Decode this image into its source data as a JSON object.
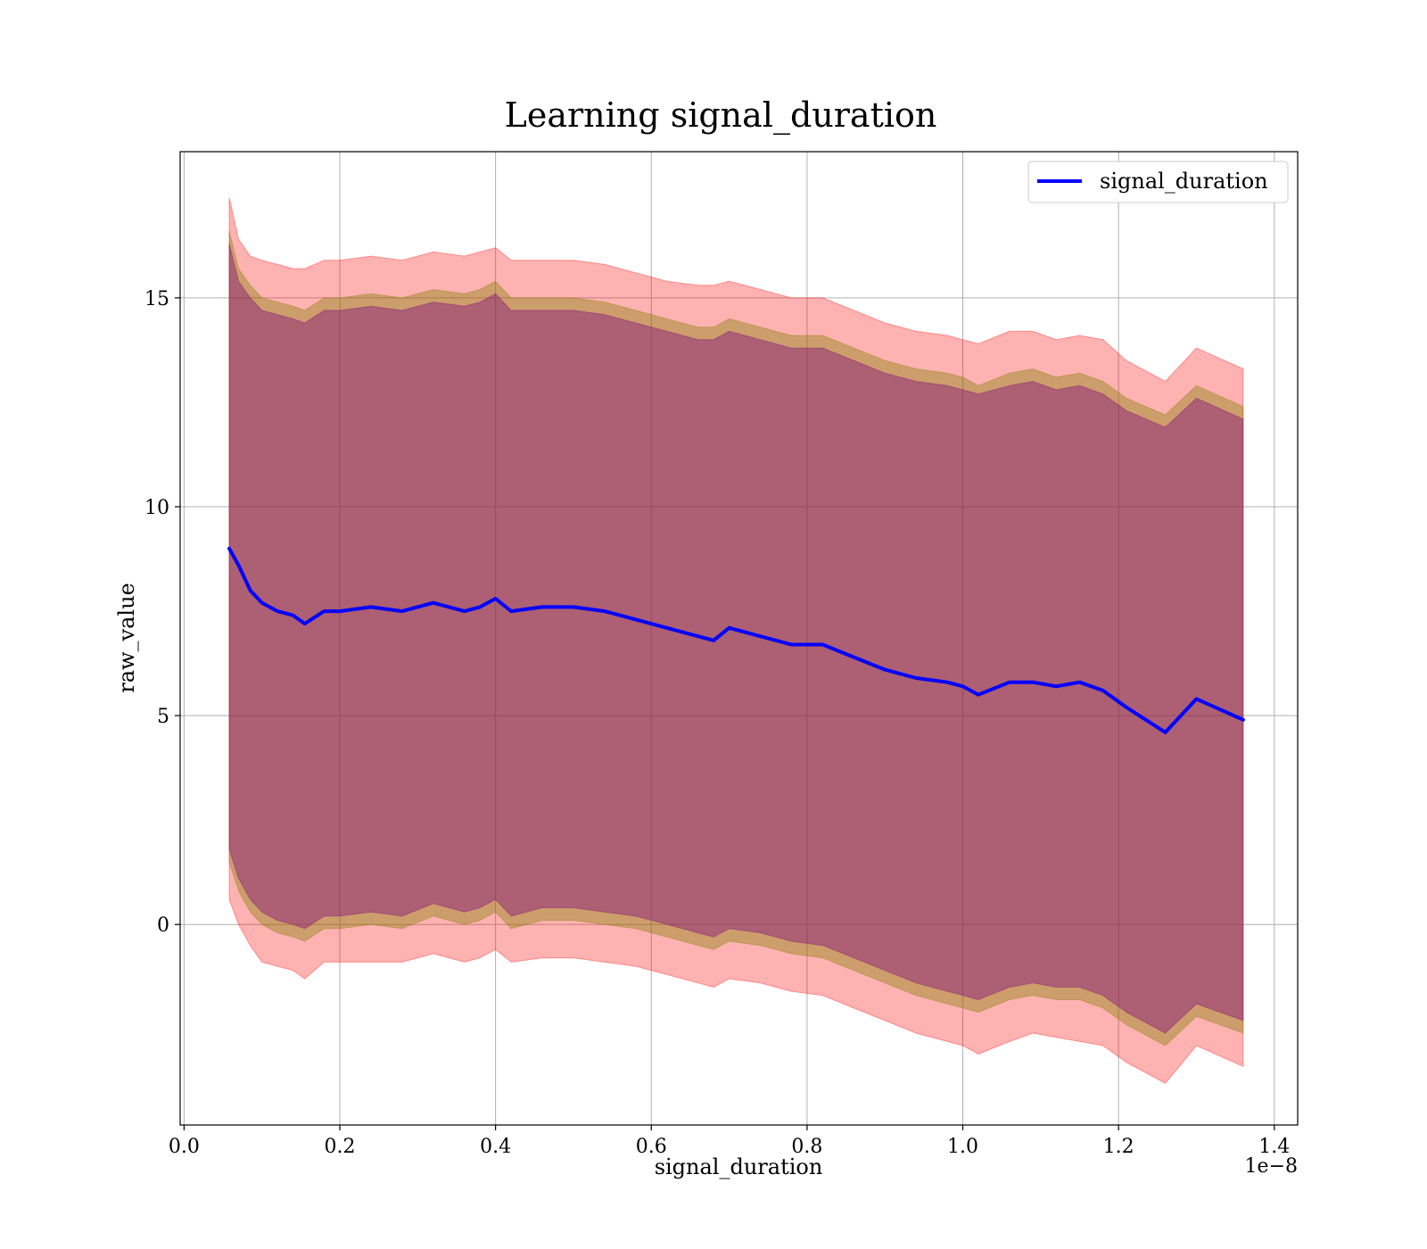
{
  "chart_data": {
    "type": "area",
    "title": "Learning signal_duration",
    "xlabel": "signal_duration",
    "ylabel": "raw_value",
    "x_offset_label": "1e−8",
    "xlim": [
      -0.005,
      1.43
    ],
    "ylim": [
      -4.8,
      18.5
    ],
    "xticks": [
      0.0,
      0.2,
      0.4,
      0.6,
      0.8,
      1.0,
      1.2,
      1.4
    ],
    "xtick_labels": [
      "0.0",
      "0.2",
      "0.4",
      "0.6",
      "0.8",
      "1.0",
      "1.2",
      "1.4"
    ],
    "yticks": [
      0,
      5,
      10,
      15
    ],
    "ytick_labels": [
      "0",
      "5",
      "10",
      "15"
    ],
    "grid": true,
    "legend_position": "top-right",
    "colors": {
      "line": "#0000ff",
      "outer_band": "#ff0000",
      "middle_band": "#808000",
      "inner_band": "#800080"
    },
    "x": [
      0.058,
      0.07,
      0.085,
      0.1,
      0.12,
      0.14,
      0.155,
      0.18,
      0.2,
      0.24,
      0.28,
      0.32,
      0.36,
      0.38,
      0.4,
      0.42,
      0.46,
      0.5,
      0.54,
      0.58,
      0.62,
      0.66,
      0.68,
      0.7,
      0.74,
      0.78,
      0.82,
      0.86,
      0.9,
      0.94,
      0.98,
      1.0,
      1.02,
      1.06,
      1.09,
      1.12,
      1.15,
      1.18,
      1.21,
      1.26,
      1.3,
      1.36
    ],
    "series": [
      {
        "name": "signal_duration",
        "values": [
          9.0,
          8.6,
          8.0,
          7.7,
          7.5,
          7.4,
          7.2,
          7.5,
          7.5,
          7.6,
          7.5,
          7.7,
          7.5,
          7.6,
          7.8,
          7.5,
          7.6,
          7.6,
          7.5,
          7.3,
          7.1,
          6.9,
          6.8,
          7.1,
          6.9,
          6.7,
          6.7,
          6.4,
          6.1,
          5.9,
          5.8,
          5.7,
          5.5,
          5.8,
          5.8,
          5.7,
          5.8,
          5.6,
          5.2,
          4.6,
          5.4,
          4.9
        ]
      }
    ],
    "bands": [
      {
        "name": "outer",
        "upper": [
          17.4,
          16.4,
          16.0,
          15.9,
          15.8,
          15.7,
          15.7,
          15.9,
          15.9,
          16.0,
          15.9,
          16.1,
          16.0,
          16.1,
          16.2,
          15.9,
          15.9,
          15.9,
          15.8,
          15.6,
          15.4,
          15.3,
          15.3,
          15.4,
          15.2,
          15.0,
          15.0,
          14.7,
          14.4,
          14.2,
          14.1,
          14.0,
          13.9,
          14.2,
          14.2,
          14.0,
          14.1,
          14.0,
          13.5,
          13.0,
          13.8,
          13.3
        ],
        "lower": [
          0.6,
          0.0,
          -0.5,
          -0.9,
          -1.0,
          -1.1,
          -1.3,
          -0.9,
          -0.9,
          -0.9,
          -0.9,
          -0.7,
          -0.9,
          -0.8,
          -0.6,
          -0.9,
          -0.8,
          -0.8,
          -0.9,
          -1.0,
          -1.2,
          -1.4,
          -1.5,
          -1.3,
          -1.4,
          -1.6,
          -1.7,
          -2.0,
          -2.3,
          -2.6,
          -2.8,
          -2.9,
          -3.1,
          -2.8,
          -2.6,
          -2.7,
          -2.8,
          -2.9,
          -3.3,
          -3.8,
          -2.9,
          -3.4
        ]
      },
      {
        "name": "middle",
        "upper": [
          16.6,
          15.7,
          15.3,
          15.0,
          14.9,
          14.8,
          14.7,
          15.0,
          15.0,
          15.1,
          15.0,
          15.2,
          15.1,
          15.2,
          15.4,
          15.0,
          15.0,
          15.0,
          14.9,
          14.7,
          14.5,
          14.3,
          14.3,
          14.5,
          14.3,
          14.1,
          14.1,
          13.8,
          13.5,
          13.3,
          13.2,
          13.1,
          12.9,
          13.2,
          13.3,
          13.1,
          13.2,
          13.0,
          12.6,
          12.2,
          12.9,
          12.4
        ],
        "lower": [
          1.5,
          0.8,
          0.3,
          0.0,
          -0.2,
          -0.3,
          -0.4,
          -0.1,
          -0.1,
          0.0,
          -0.1,
          0.2,
          0.0,
          0.1,
          0.3,
          -0.1,
          0.1,
          0.1,
          0.0,
          -0.1,
          -0.3,
          -0.5,
          -0.6,
          -0.4,
          -0.5,
          -0.7,
          -0.8,
          -1.1,
          -1.4,
          -1.7,
          -1.9,
          -2.0,
          -2.1,
          -1.8,
          -1.7,
          -1.8,
          -1.8,
          -2.0,
          -2.4,
          -2.9,
          -2.2,
          -2.6
        ]
      },
      {
        "name": "inner",
        "upper": [
          16.3,
          15.4,
          15.0,
          14.7,
          14.6,
          14.5,
          14.4,
          14.7,
          14.7,
          14.8,
          14.7,
          14.9,
          14.8,
          14.9,
          15.1,
          14.7,
          14.7,
          14.7,
          14.6,
          14.4,
          14.2,
          14.0,
          14.0,
          14.2,
          14.0,
          13.8,
          13.8,
          13.5,
          13.2,
          13.0,
          12.9,
          12.8,
          12.7,
          12.9,
          13.0,
          12.8,
          12.9,
          12.7,
          12.3,
          11.9,
          12.6,
          12.1
        ],
        "lower": [
          1.8,
          1.1,
          0.6,
          0.3,
          0.1,
          0.0,
          -0.1,
          0.2,
          0.2,
          0.3,
          0.2,
          0.5,
          0.3,
          0.4,
          0.6,
          0.2,
          0.4,
          0.4,
          0.3,
          0.2,
          0.0,
          -0.2,
          -0.3,
          -0.1,
          -0.2,
          -0.4,
          -0.5,
          -0.8,
          -1.1,
          -1.4,
          -1.6,
          -1.7,
          -1.8,
          -1.5,
          -1.4,
          -1.5,
          -1.5,
          -1.7,
          -2.1,
          -2.6,
          -1.9,
          -2.3
        ]
      }
    ]
  }
}
